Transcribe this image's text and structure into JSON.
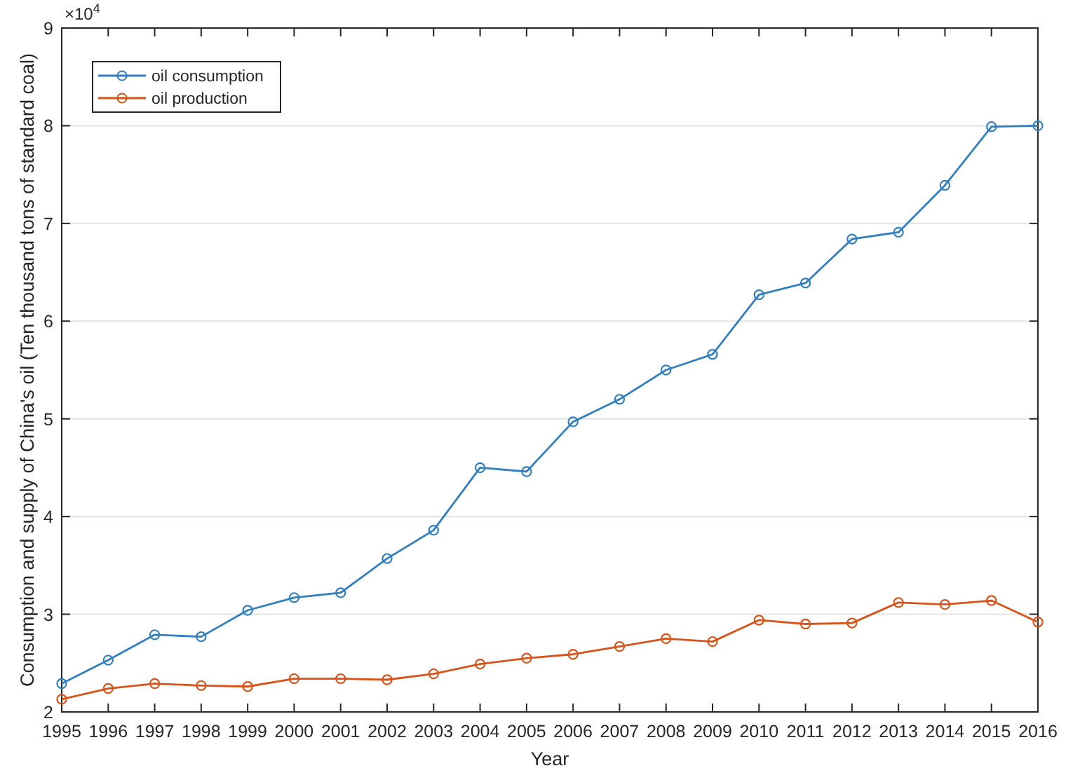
{
  "chart_data": {
    "type": "line",
    "xlabel": "Year",
    "ylabel": "Consumption and supply of China's oil (Ten thousand tons of standard coal)",
    "annotations": [
      "×10$^{4}$"
    ],
    "x": [
      1995,
      1996,
      1997,
      1998,
      1999,
      2000,
      2001,
      2002,
      2003,
      2004,
      2005,
      2006,
      2007,
      2008,
      2009,
      2010,
      2011,
      2012,
      2013,
      2014,
      2015,
      2016
    ],
    "series": [
      {
        "name": "oil consumption",
        "color": "#2f7fc1",
        "values": [
          2.29,
          2.53,
          2.79,
          2.77,
          3.04,
          3.17,
          3.22,
          3.57,
          3.86,
          4.5,
          4.46,
          4.97,
          5.2,
          5.5,
          5.66,
          6.27,
          6.39,
          6.84,
          6.91,
          7.39,
          7.99,
          8.0
        ]
      },
      {
        "name": "oil production",
        "color": "#d95319",
        "values": [
          2.13,
          2.24,
          2.29,
          2.27,
          2.26,
          2.34,
          2.34,
          2.33,
          2.39,
          2.49,
          2.55,
          2.59,
          2.67,
          2.75,
          2.72,
          2.94,
          2.9,
          2.91,
          3.12,
          3.1,
          3.14,
          2.92
        ]
      }
    ],
    "xlim": [
      1995,
      2016
    ],
    "xticks": [
      1995,
      1996,
      1997,
      1998,
      1999,
      2000,
      2001,
      2002,
      2003,
      2004,
      2005,
      2006,
      2007,
      2008,
      2009,
      2010,
      2011,
      2012,
      2013,
      2014,
      2015,
      2016
    ],
    "ylim": [
      2,
      9
    ],
    "yticks": [
      2,
      3,
      4,
      5,
      6,
      7,
      8,
      9
    ],
    "grid": "y",
    "legend": "top left",
    "marker": "circle",
    "line_style": "solid"
  }
}
